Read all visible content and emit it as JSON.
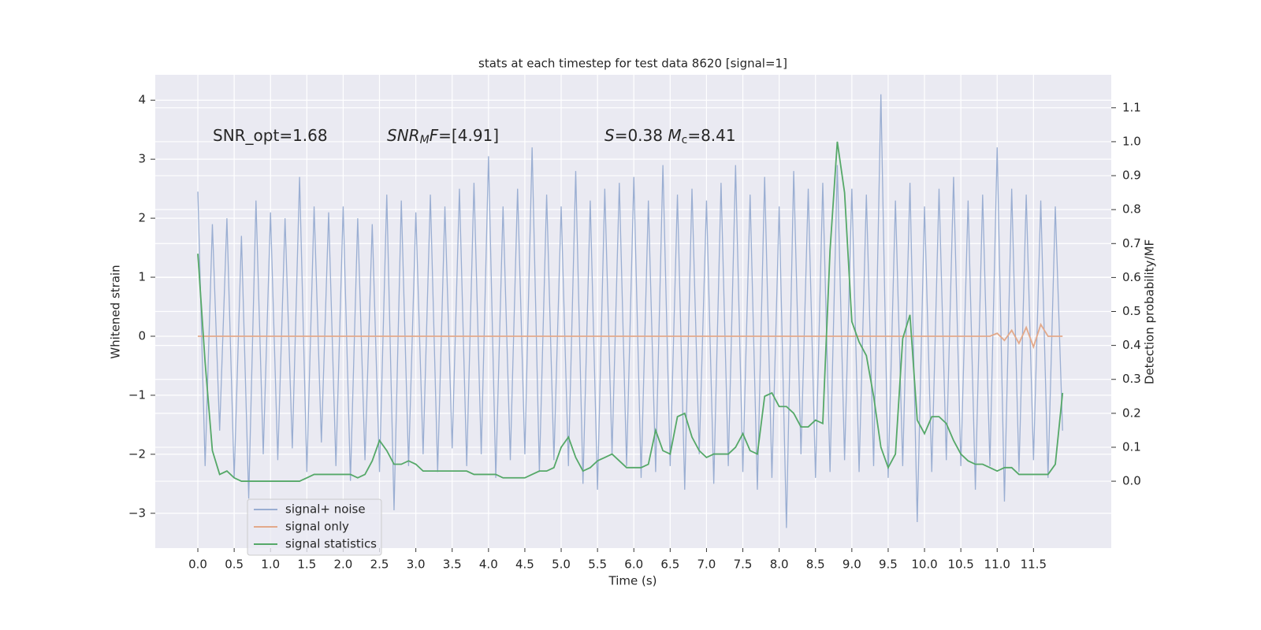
{
  "chart_data": {
    "type": "line",
    "title": "stats at each timestep for test data 8620 [signal=1]",
    "x_label": "Time (s)",
    "y_label": "Whitened strain",
    "y2_label": "Detection probability/MF",
    "annotations": [
      [
        "SNR_opt=1.68"
      ],
      [
        "SNR",
        "M",
        "F",
        "=[4.91]"
      ],
      [
        "S",
        "=0.38   ",
        "M",
        "c",
        "=8.41"
      ]
    ],
    "grid": true,
    "legend": "lower left",
    "xlim": [
      -0.586,
      12.57
    ],
    "ylim": [
      -3.59,
      4.43
    ],
    "y2lim": [
      -0.197,
      1.197
    ],
    "xticks": [
      {
        "value": 0,
        "label": "0.0"
      },
      0.5,
      {
        "value": 1,
        "label": "1.0"
      },
      1.5,
      {
        "value": 2,
        "label": "2.0"
      },
      2.5,
      {
        "value": 3,
        "label": "3.0"
      },
      3.5,
      {
        "value": 4,
        "label": "4.0"
      },
      4.5,
      {
        "value": 5,
        "label": "5.0"
      },
      5.5,
      {
        "value": 6,
        "label": "6.0"
      },
      6.5,
      {
        "value": 7,
        "label": "7.0"
      },
      7.5,
      {
        "value": 8,
        "label": "8.0"
      },
      8.5,
      {
        "value": 9,
        "label": "9.0"
      },
      9.5,
      {
        "value": 10,
        "label": "10.0"
      },
      10.5,
      {
        "value": 11,
        "label": "11.0"
      },
      11.5
    ],
    "yticks": [
      {
        "value": -3,
        "label": "−3"
      },
      {
        "value": -2,
        "label": "−2"
      },
      {
        "value": -1,
        "label": "−1"
      },
      0,
      1,
      2,
      3,
      4
    ],
    "y2ticks": [
      {
        "value": 0,
        "label": "0.0"
      },
      0.1,
      0.2,
      0.3,
      0.4,
      0.5,
      0.6,
      0.7,
      0.8,
      0.9,
      {
        "value": 1,
        "label": "1.0"
      },
      1.1
    ],
    "x": [
      0,
      0.1,
      0.2,
      0.3,
      0.4,
      0.5,
      0.6,
      0.7,
      0.8,
      0.9,
      1,
      1.1,
      1.2,
      1.3,
      1.4,
      1.5,
      1.6,
      1.7,
      1.8,
      1.9,
      2,
      2.1,
      2.2,
      2.3,
      2.4,
      2.5,
      2.6,
      2.7,
      2.8,
      2.9,
      3,
      3.1,
      3.2,
      3.3,
      3.4,
      3.5,
      3.6,
      3.7,
      3.8,
      3.9,
      4,
      4.1,
      4.2,
      4.3,
      4.4,
      4.5,
      4.6,
      4.7,
      4.8,
      4.9,
      5,
      5.1,
      5.2,
      5.3,
      5.4,
      5.5,
      5.6,
      5.7,
      5.8,
      5.9,
      6,
      6.1,
      6.2,
      6.3,
      6.4,
      6.5,
      6.6,
      6.7,
      6.8,
      6.9,
      7,
      7.1,
      7.2,
      7.3,
      7.4,
      7.5,
      7.6,
      7.7,
      7.8,
      7.9,
      8,
      8.1,
      8.2,
      8.3,
      8.4,
      8.5,
      8.6,
      8.7,
      8.8,
      8.9,
      9,
      9.1,
      9.2,
      9.3,
      9.4,
      9.5,
      9.6,
      9.7,
      9.8,
      9.9,
      10,
      10.1,
      10.2,
      10.3,
      10.4,
      10.5,
      10.6,
      10.7,
      10.8,
      10.9,
      11,
      11.1,
      11.2,
      11.3,
      11.4,
      11.5,
      11.6,
      11.7,
      11.8,
      11.9
    ],
    "series": [
      {
        "name": "signal+ noise",
        "color": "#9aaed2",
        "values": [
          2.45,
          -2.2,
          1.9,
          -1.6,
          2.0,
          -2.4,
          1.7,
          -2.75,
          2.3,
          -2.0,
          2.1,
          -2.1,
          2.0,
          -1.9,
          2.7,
          -2.3,
          2.2,
          -1.8,
          2.1,
          -2.2,
          2.2,
          -2.45,
          2.0,
          -2.1,
          1.9,
          -2.3,
          2.4,
          -2.95,
          2.3,
          -2.2,
          2.1,
          -2.0,
          2.4,
          -2.3,
          2.2,
          -1.9,
          2.5,
          -2.2,
          2.6,
          -2.0,
          3.05,
          -2.4,
          2.2,
          -2.1,
          2.5,
          -2.0,
          3.2,
          -2.3,
          2.4,
          -2.1,
          2.2,
          -2.2,
          2.8,
          -2.5,
          2.3,
          -2.6,
          2.5,
          -2.0,
          2.6,
          -2.2,
          2.7,
          -2.4,
          2.3,
          -2.3,
          2.9,
          -2.2,
          2.4,
          -2.6,
          2.5,
          -2.0,
          2.3,
          -2.5,
          2.6,
          -2.2,
          2.9,
          -2.3,
          2.4,
          -2.6,
          2.7,
          -2.4,
          2.2,
          -3.25,
          2.8,
          -2.0,
          2.5,
          -2.4,
          2.6,
          -2.3,
          2.9,
          -2.1,
          2.5,
          -2.3,
          2.4,
          -2.2,
          4.1,
          -2.4,
          2.3,
          -2.2,
          2.6,
          -3.15,
          2.2,
          -2.3,
          2.5,
          -2.1,
          2.7,
          -2.2,
          2.3,
          -2.6,
          2.4,
          -2.2,
          3.2,
          -2.8,
          2.5,
          -2.3,
          2.4,
          -2.1,
          2.3,
          -2.4,
          2.2,
          -1.6
        ]
      },
      {
        "name": "signal only",
        "color": "#e3a98a",
        "values": [
          0,
          0,
          0,
          0,
          0,
          0,
          0,
          0,
          0,
          0,
          0,
          0,
          0,
          0,
          0,
          0,
          0,
          0,
          0,
          0,
          0,
          0,
          0,
          0,
          0,
          0,
          0,
          0,
          0,
          0,
          0,
          0,
          0,
          0,
          0,
          0,
          0,
          0,
          0,
          0,
          0,
          0,
          0,
          0,
          0,
          0,
          0,
          0,
          0,
          0,
          0,
          0,
          0,
          0,
          0,
          0,
          0,
          0,
          0,
          0,
          0,
          0,
          0,
          0,
          0,
          0,
          0,
          0,
          0,
          0,
          0,
          0,
          0,
          0,
          0,
          0,
          0,
          0,
          0,
          0,
          0,
          0,
          0,
          0,
          0,
          0,
          0,
          0,
          0,
          0,
          0,
          0,
          0,
          0,
          0,
          0,
          0,
          0,
          0,
          0,
          0,
          0,
          0,
          0,
          0,
          0,
          0,
          0,
          0,
          0,
          0.05,
          -0.07,
          0.1,
          -0.12,
          0.15,
          -0.18,
          0.2,
          0,
          0,
          0
        ]
      },
      {
        "name": "signal statistics",
        "color": "#55a868",
        "axis": "y2",
        "values": [
          0.67,
          0.35,
          0.09,
          0.02,
          0.03,
          0.01,
          0.0,
          0.0,
          0.0,
          0.0,
          0.0,
          0.0,
          0.0,
          0.0,
          0.0,
          0.01,
          0.02,
          0.02,
          0.02,
          0.02,
          0.02,
          0.02,
          0.01,
          0.02,
          0.06,
          0.12,
          0.09,
          0.05,
          0.05,
          0.06,
          0.05,
          0.03,
          0.03,
          0.03,
          0.03,
          0.03,
          0.03,
          0.03,
          0.02,
          0.02,
          0.02,
          0.02,
          0.01,
          0.01,
          0.01,
          0.01,
          0.02,
          0.03,
          0.03,
          0.04,
          0.1,
          0.13,
          0.07,
          0.03,
          0.04,
          0.06,
          0.07,
          0.08,
          0.06,
          0.04,
          0.04,
          0.04,
          0.05,
          0.15,
          0.09,
          0.08,
          0.19,
          0.2,
          0.13,
          0.09,
          0.07,
          0.08,
          0.08,
          0.08,
          0.1,
          0.14,
          0.09,
          0.08,
          0.25,
          0.26,
          0.22,
          0.22,
          0.2,
          0.16,
          0.16,
          0.18,
          0.17,
          0.68,
          1.0,
          0.85,
          0.47,
          0.41,
          0.37,
          0.25,
          0.1,
          0.04,
          0.08,
          0.42,
          0.49,
          0.18,
          0.14,
          0.19,
          0.19,
          0.17,
          0.12,
          0.08,
          0.06,
          0.05,
          0.05,
          0.04,
          0.03,
          0.04,
          0.04,
          0.02,
          0.02,
          0.02,
          0.02,
          0.02,
          0.05,
          0.26
        ]
      }
    ]
  }
}
